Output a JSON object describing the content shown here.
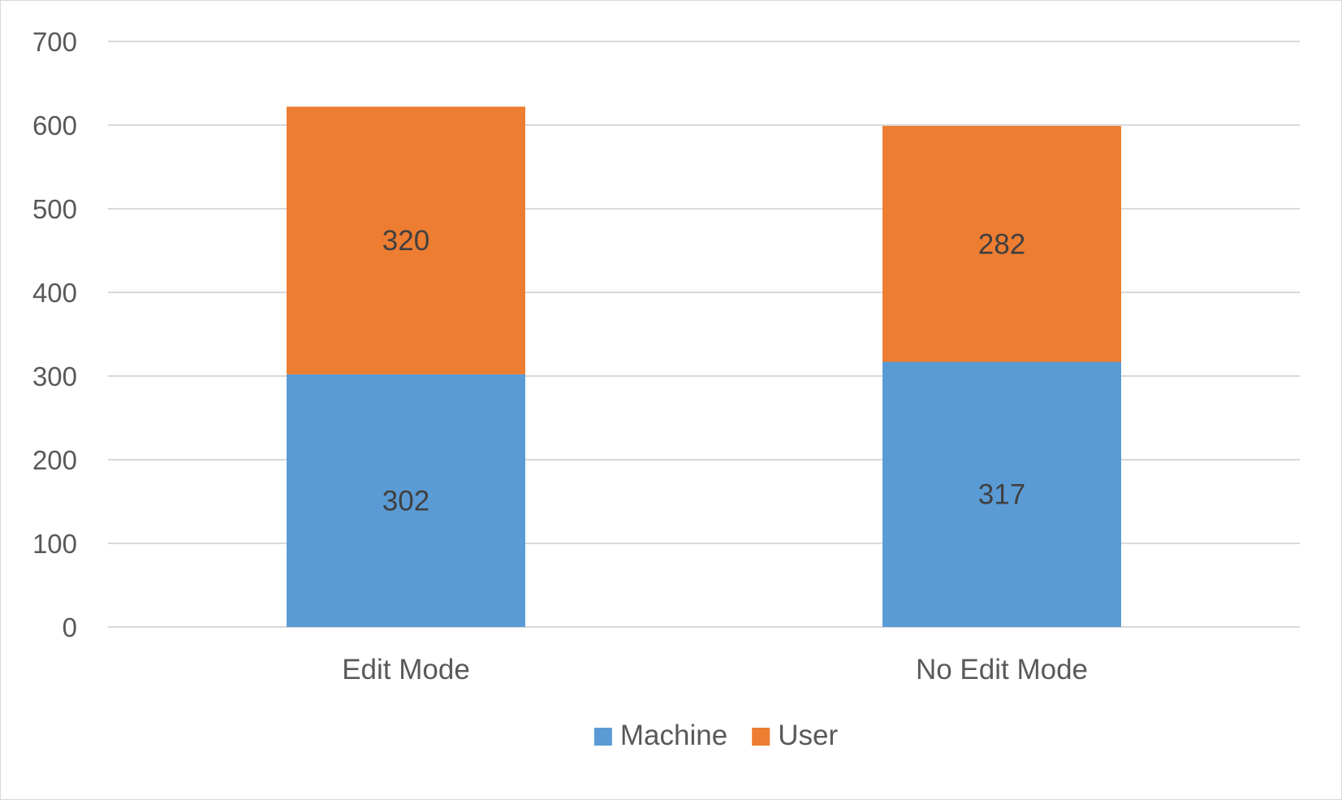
{
  "chart_data": {
    "type": "bar",
    "stacked": true,
    "title": "",
    "xlabel": "",
    "ylabel": "",
    "categories": [
      "Edit Mode",
      "No Edit Mode"
    ],
    "series": [
      {
        "name": "Machine",
        "values": [
          302,
          317
        ],
        "color": "#5b9bd5"
      },
      {
        "name": "User",
        "values": [
          320,
          282
        ],
        "color": "#ed7d31"
      }
    ],
    "ylim": [
      0,
      700
    ],
    "yticks": [
      0,
      100,
      200,
      300,
      400,
      500,
      600,
      700
    ],
    "grid": true,
    "gridline_color": "#d9d9d9",
    "data_labels": true,
    "legend": "bottom"
  }
}
